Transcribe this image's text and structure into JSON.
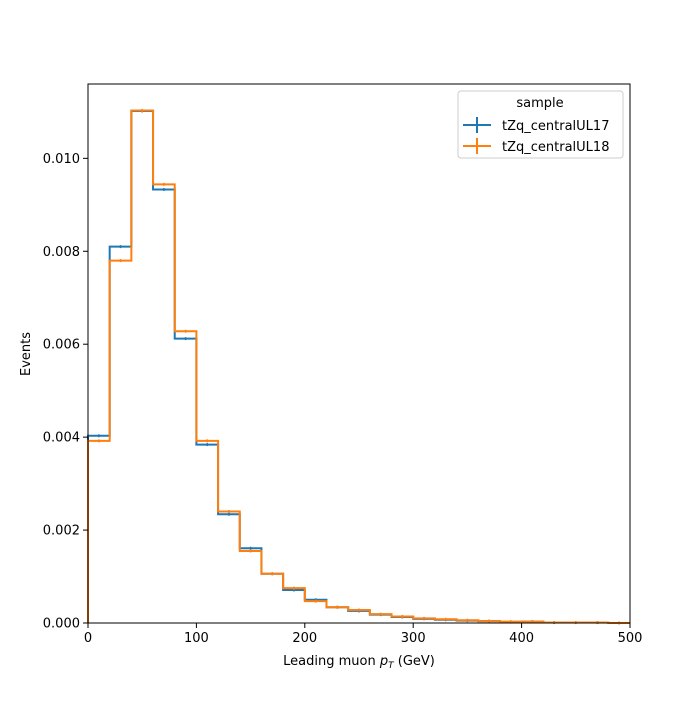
{
  "chart_data": {
    "type": "histogram-step",
    "xlabel_prefix": "Leading muon ",
    "xlabel_var": "p",
    "xlabel_sub": "T",
    "xlabel_suffix": " (GeV)",
    "ylabel": "Events",
    "xlim": [
      0,
      500
    ],
    "ylim": [
      0,
      0.0116
    ],
    "xticks": [
      0,
      100,
      200,
      300,
      400,
      500
    ],
    "xtick_labels": [
      "0",
      "100",
      "200",
      "300",
      "400",
      "500"
    ],
    "yticks": [
      0,
      0.002,
      0.004,
      0.006,
      0.008,
      0.01
    ],
    "ytick_labels": [
      "0.000",
      "0.002",
      "0.004",
      "0.006",
      "0.008",
      "0.010"
    ],
    "bin_edges": [
      0,
      20,
      40,
      60,
      80,
      100,
      120,
      140,
      160,
      180,
      200,
      220,
      240,
      260,
      280,
      300,
      320,
      340,
      360,
      380,
      400,
      420,
      440,
      460,
      480,
      500
    ],
    "legend": {
      "title": "sample",
      "placement": "upper-right"
    },
    "grid": false,
    "series": [
      {
        "name": "tZq_centralUL17",
        "color": "#1f77b4",
        "values": [
          0.00403,
          0.0081,
          0.01102,
          0.00933,
          0.00612,
          0.00384,
          0.00234,
          0.00161,
          0.00106,
          0.00071,
          0.0005,
          0.00034,
          0.00026,
          0.00018,
          0.00013,
          9e-05,
          7e-05,
          5e-05,
          4e-05,
          2e-05,
          3e-05,
          1e-05,
          1e-05,
          1e-05,
          0.0
        ]
      },
      {
        "name": "tZq_centralUL18",
        "color": "#ff7f0e",
        "values": [
          0.00392,
          0.0078,
          0.01103,
          0.00944,
          0.00628,
          0.00392,
          0.0024,
          0.00155,
          0.00106,
          0.00075,
          0.00047,
          0.00034,
          0.00028,
          0.00019,
          0.00014,
          0.0001,
          8e-05,
          6e-05,
          4e-05,
          3e-05,
          3e-05,
          1e-05,
          1e-05,
          1e-05,
          0.0
        ]
      }
    ]
  }
}
